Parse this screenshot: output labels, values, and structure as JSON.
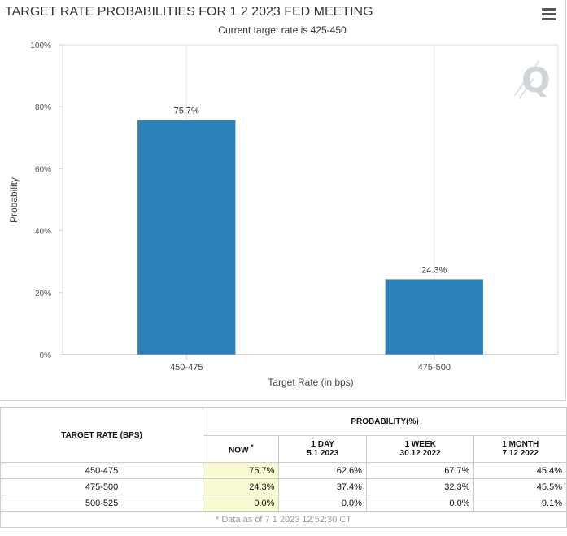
{
  "chart_data": {
    "type": "bar",
    "title": "TARGET RATE PROBABILITIES FOR 1 2 2023 FED MEETING",
    "subtitle": "Current target rate is 425-450",
    "xlabel": "Target Rate (in bps)",
    "ylabel": "Probability",
    "categories": [
      "450-475",
      "475-500"
    ],
    "values": [
      75.7,
      24.3
    ],
    "value_labels": [
      "75.7%",
      "24.3%"
    ],
    "ylim": [
      0,
      100
    ],
    "yticks": [
      0,
      20,
      40,
      60,
      80,
      100
    ],
    "ytick_labels": [
      "0%",
      "20%",
      "40%",
      "60%",
      "80%",
      "100%"
    ],
    "bar_color": "#2a80b9",
    "grid": "vertical"
  },
  "table": {
    "rate_header": "TARGET RATE (BPS)",
    "prob_header": "PROBABILITY(%)",
    "now_label": "NOW",
    "now_marker": "*",
    "day_label": "1 DAY",
    "day_date": "5 1 2023",
    "week_label": "1 WEEK",
    "week_date": "30 12 2022",
    "month_label": "1 MONTH",
    "month_date": "7 12 2022",
    "rows": [
      {
        "rate": "450-475",
        "now": "75.7%",
        "day": "62.6%",
        "week": "67.7%",
        "month": "45.4%"
      },
      {
        "rate": "475-500",
        "now": "24.3%",
        "day": "37.4%",
        "week": "32.3%",
        "month": "45.5%"
      },
      {
        "rate": "500-525",
        "now": "0.0%",
        "day": "0.0%",
        "week": "0.0%",
        "month": "9.1%"
      }
    ],
    "note": "* Data as of 7 1 2023 12:52:30 CT"
  },
  "colors": {
    "accent": "#2a80b9",
    "now_highlight": "#fafad2"
  },
  "icons": {
    "menu": "hamburger-menu-icon",
    "logo": "quikstrike-q-logo-icon"
  }
}
